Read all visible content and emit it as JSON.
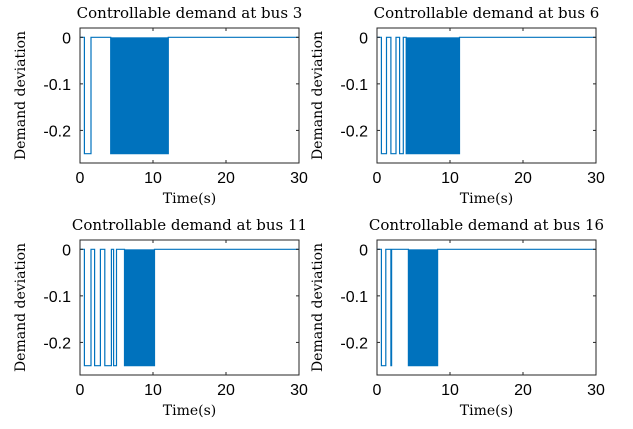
{
  "chart_data": [
    {
      "type": "line",
      "title": "Controllable demand at bus 3",
      "xlabel": "Time(s)",
      "ylabel": "Demand deviation",
      "xlim": [
        0,
        30
      ],
      "ylim": [
        -0.27,
        0.02
      ],
      "xticks": [
        0,
        10,
        20,
        30
      ],
      "yticks": [
        0,
        -0.1,
        -0.2
      ],
      "ytick_labels": [
        "0",
        "-0.1",
        "-0.2"
      ],
      "color": "#0072BD",
      "step_pulses": [
        [
          0.6,
          1.5
        ]
      ],
      "filled_band": [
        4.2,
        12.1
      ],
      "x": [
        0,
        0.6,
        0.6,
        1.5,
        1.5,
        4.2,
        4.2,
        12.1,
        12.1,
        30
      ],
      "y": [
        0,
        0,
        -0.25,
        -0.25,
        0,
        0,
        -0.25,
        -0.25,
        0,
        0
      ]
    },
    {
      "type": "line",
      "title": "Controllable demand at bus 6",
      "xlabel": "Time(s)",
      "ylabel": "Demand deviation",
      "xlim": [
        0,
        30
      ],
      "ylim": [
        -0.27,
        0.02
      ],
      "xticks": [
        0,
        10,
        20,
        30
      ],
      "yticks": [
        0,
        -0.1,
        -0.2
      ],
      "ytick_labels": [
        "0",
        "-0.1",
        "-0.2"
      ],
      "color": "#0072BD",
      "step_pulses": [
        [
          0.6,
          1.3
        ],
        [
          1.9,
          2.6
        ],
        [
          3.1,
          3.6
        ]
      ],
      "filled_band": [
        4.0,
        11.3
      ],
      "x": [
        0,
        0.6,
        0.6,
        1.3,
        1.3,
        1.9,
        1.9,
        2.6,
        2.6,
        3.1,
        3.1,
        3.6,
        3.6,
        4.0,
        4.0,
        11.3,
        11.3,
        30
      ],
      "y": [
        0,
        0,
        -0.25,
        -0.25,
        0,
        0,
        -0.25,
        -0.25,
        0,
        0,
        -0.25,
        -0.25,
        0,
        0,
        -0.25,
        -0.25,
        0,
        0
      ]
    },
    {
      "type": "line",
      "title": "Controllable demand at bus 11",
      "xlabel": "Time(s)",
      "ylabel": "Demand deviation",
      "xlim": [
        0,
        30
      ],
      "ylim": [
        -0.27,
        0.02
      ],
      "xticks": [
        0,
        10,
        20,
        30
      ],
      "yticks": [
        0,
        -0.1,
        -0.2
      ],
      "ytick_labels": [
        "0",
        "-0.1",
        "-0.2"
      ],
      "color": "#0072BD",
      "step_pulses": [
        [
          0.6,
          1.5
        ],
        [
          2.0,
          2.8
        ],
        [
          3.4,
          4.3
        ],
        [
          4.6,
          5.0
        ]
      ],
      "filled_band": [
        6.1,
        10.2
      ],
      "x": [
        0,
        0.6,
        0.6,
        1.5,
        1.5,
        2.0,
        2.0,
        2.8,
        2.8,
        3.4,
        3.4,
        4.3,
        4.3,
        4.6,
        4.6,
        5.0,
        5.0,
        6.1,
        6.1,
        10.2,
        10.2,
        30
      ],
      "y": [
        0,
        0,
        -0.25,
        -0.25,
        0,
        0,
        -0.25,
        -0.25,
        0,
        0,
        -0.25,
        -0.25,
        0,
        0,
        -0.25,
        -0.25,
        0,
        0,
        -0.25,
        -0.25,
        0,
        0
      ]
    },
    {
      "type": "line",
      "title": "Controllable demand at bus 16",
      "xlabel": "Time(s)",
      "ylabel": "Demand deviation",
      "xlim": [
        0,
        30
      ],
      "ylim": [
        -0.27,
        0.02
      ],
      "xticks": [
        0,
        10,
        20,
        30
      ],
      "yticks": [
        0,
        -0.1,
        -0.2
      ],
      "ytick_labels": [
        "0",
        "-0.1",
        "-0.2"
      ],
      "color": "#0072BD",
      "step_pulses": [
        [
          0.6,
          1.2
        ],
        [
          1.9,
          2.0
        ]
      ],
      "filled_band": [
        4.3,
        8.3
      ],
      "x": [
        0,
        0.6,
        0.6,
        1.2,
        1.2,
        1.9,
        1.9,
        2.0,
        2.0,
        4.3,
        4.3,
        8.3,
        8.3,
        30
      ],
      "y": [
        0,
        0,
        -0.25,
        -0.25,
        0,
        0,
        -0.25,
        -0.25,
        0,
        0,
        -0.25,
        -0.25,
        0,
        0
      ]
    }
  ]
}
